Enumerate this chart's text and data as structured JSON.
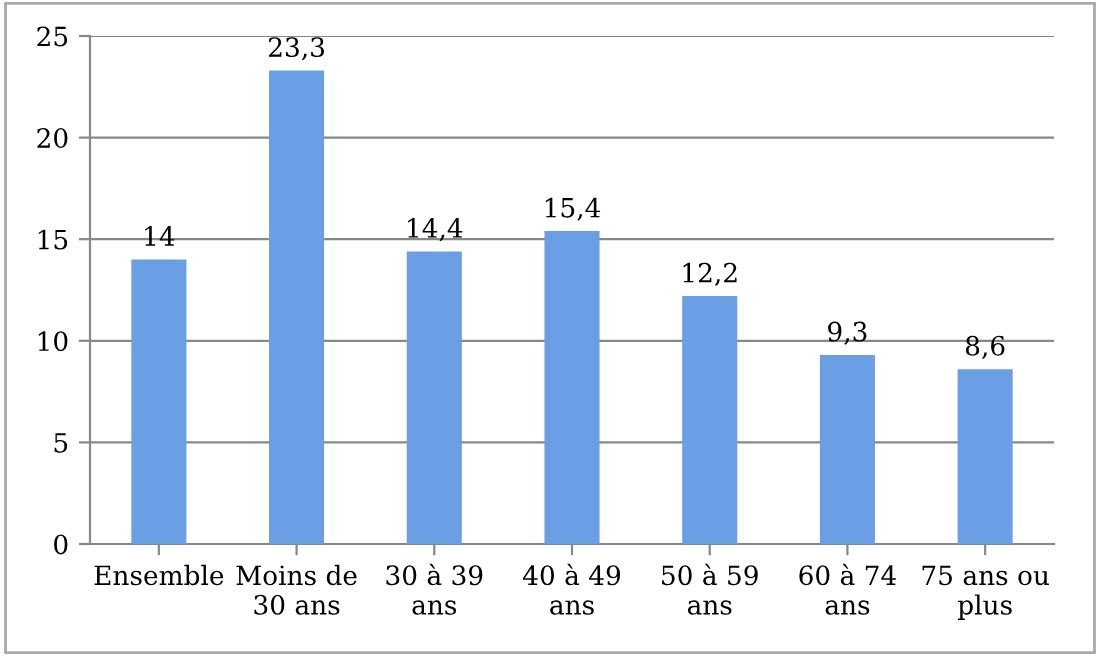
{
  "chart_data": {
    "type": "bar",
    "categories": [
      "Ensemble",
      "Moins de\n30 ans",
      "30 à 39\nans",
      "40 à 49\nans",
      "50 à 59\nans",
      "60 à 74\nans",
      "75 ans ou\nplus"
    ],
    "values": [
      14,
      23.3,
      14.4,
      15.4,
      12.2,
      9.3,
      8.6
    ],
    "value_labels": [
      "14",
      "23,3",
      "14,4",
      "15,4",
      "12,2",
      "9,3",
      "8,6"
    ],
    "color": "#6a9fe6",
    "ylim": [
      0,
      25
    ],
    "yticks": [
      0,
      5,
      10,
      15,
      20,
      25
    ],
    "grid": "y",
    "legend": false
  }
}
